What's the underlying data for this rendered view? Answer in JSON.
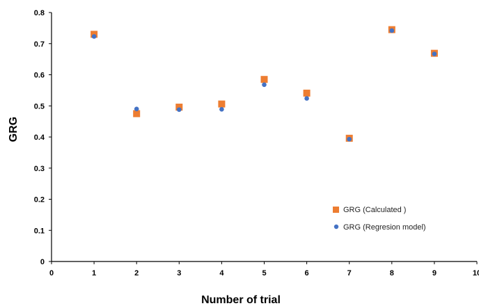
{
  "chart_data": {
    "type": "scatter",
    "title": "",
    "xlabel": "Number of trial",
    "ylabel": "GRG",
    "xlim": [
      0,
      10
    ],
    "ylim": [
      0,
      0.8
    ],
    "xticks": [
      "0",
      "1",
      "2",
      "3",
      "4",
      "5",
      "6",
      "7",
      "8",
      "9",
      "10"
    ],
    "yticks": [
      "0",
      "0.1",
      "0.2",
      "0.3",
      "0.4",
      "0.5",
      "0.6",
      "0.7",
      "0.8"
    ],
    "grid": false,
    "legend_position": "bottom-right",
    "series": [
      {
        "name": "GRG (Calculated )",
        "marker": "square",
        "color": "#ED7D31",
        "x": [
          1,
          2,
          3,
          4,
          5,
          6,
          7,
          8,
          9
        ],
        "y": [
          0.73,
          0.475,
          0.496,
          0.506,
          0.585,
          0.541,
          0.396,
          0.745,
          0.669
        ]
      },
      {
        "name": "GRG (Regresion model)",
        "marker": "circle",
        "color": "#4472C4",
        "x": [
          1,
          2,
          3,
          4,
          5,
          6,
          7,
          8,
          9
        ],
        "y": [
          0.723,
          0.49,
          0.488,
          0.489,
          0.568,
          0.524,
          0.393,
          0.742,
          0.667
        ]
      }
    ]
  }
}
